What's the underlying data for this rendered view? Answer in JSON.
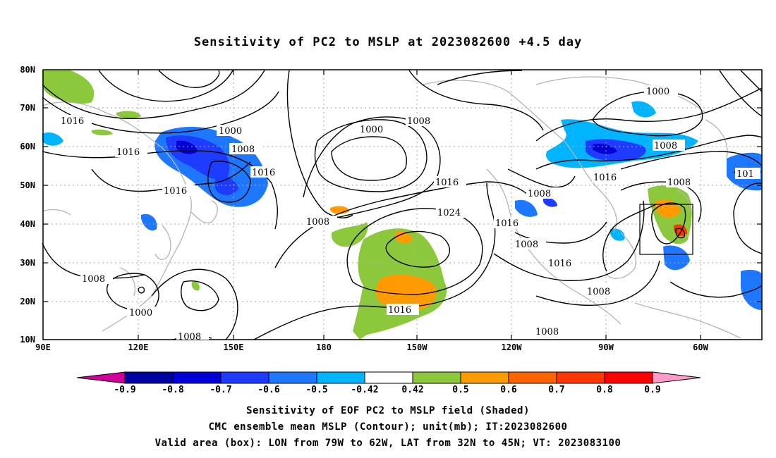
{
  "title": "Sensitivity of PC2 to MSLP at 2023082600 +4.5 day",
  "map": {
    "lat_labels": [
      "80N",
      "70N",
      "60N",
      "50N",
      "40N",
      "30N",
      "20N",
      "10N"
    ],
    "lon_labels": [
      "90E",
      "120E",
      "150E",
      "180",
      "150W",
      "120W",
      "90W",
      "60W"
    ],
    "contour_labels": [
      "1016",
      "1000",
      "1008",
      "1016",
      "1016",
      "1016",
      "1000",
      "1008",
      "1008",
      "1016",
      "1024",
      "1016",
      "1008",
      "1008",
      "1016",
      "1016",
      "1000",
      "1008",
      "1008",
      "1016",
      "1008",
      "1008",
      "1000",
      "1008",
      "1008",
      "101"
    ],
    "colors": {
      "land_outline": "#b4b4b4",
      "contour": "#000000",
      "grid": "#aaaaaa"
    }
  },
  "colorbar": {
    "labels": [
      "-0.9",
      "-0.8",
      "-0.7",
      "-0.6",
      "-0.5",
      "-0.42",
      "0.42",
      "0.5",
      "0.6",
      "0.7",
      "0.8",
      "0.9"
    ],
    "colors": [
      "#d2009b",
      "#0000a0",
      "#0000d7",
      "#1e3cff",
      "#1e78ff",
      "#00b4ff",
      "#ffffff",
      "#8cc83c",
      "#ff9b00",
      "#ff6400",
      "#ff3700",
      "#ff0000",
      "#ff9bc8"
    ]
  },
  "caption": {
    "line1": "Sensitivity of EOF PC2 to MSLP field (Shaded)",
    "line2": "CMC ensemble mean MSLP (Contour); unit(mb); IT:2023082600",
    "line3": "Valid area (box): LON from 79W to 62W, LAT from 32N to 45N; VT: 2023083100"
  }
}
